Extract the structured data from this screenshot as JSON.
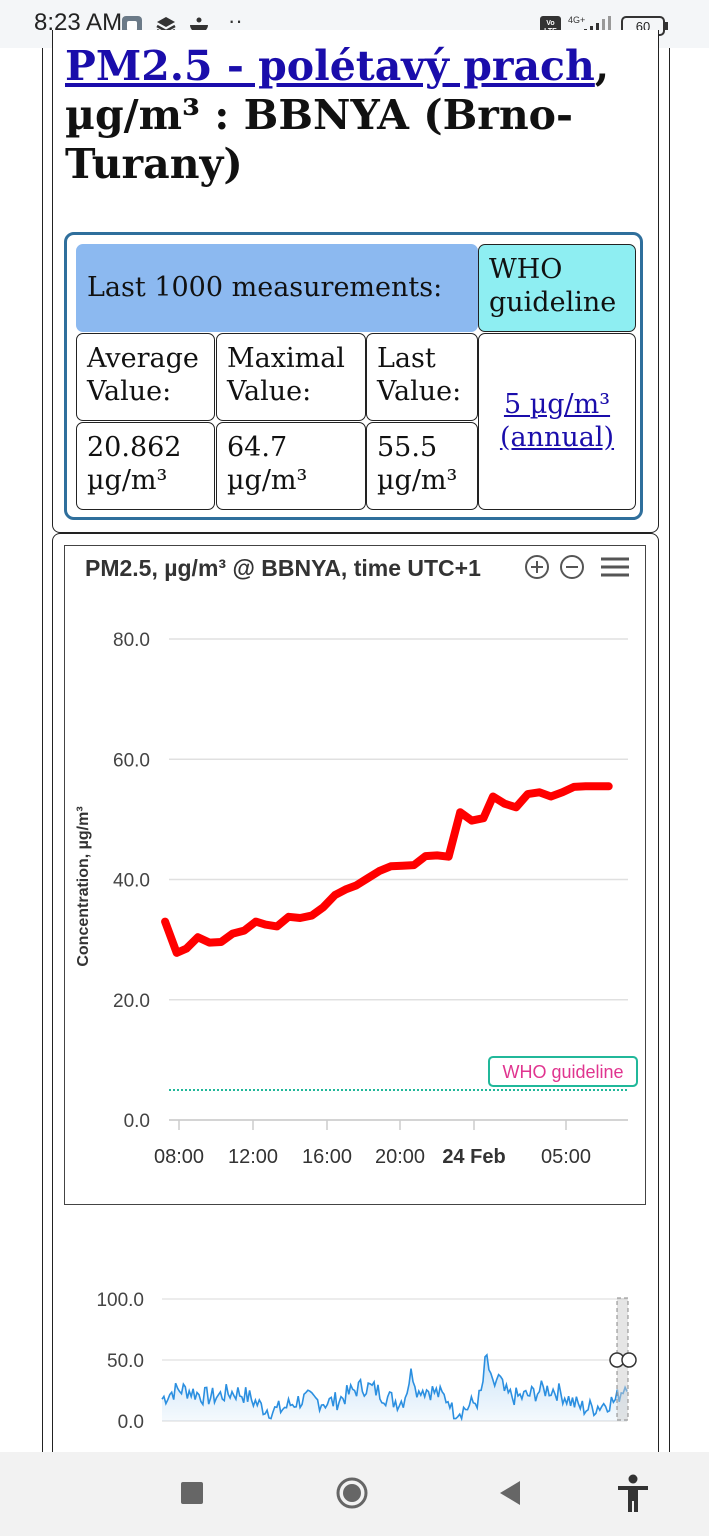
{
  "status_bar": {
    "time": "8:23 AM",
    "battery": "60",
    "network": "4G+"
  },
  "title": {
    "link_text": "PM2.5 - polétavý prach",
    "suffix": ", µg/m³ : BBNYA (Brno-Turany)"
  },
  "stats": {
    "header": "Last 1000 measurements:",
    "who_header": "WHO guideline",
    "columns": [
      {
        "label": "Average Value:",
        "value": "20.862 µg/m³"
      },
      {
        "label": "Maximal Value:",
        "value": "64.7 µg/m³"
      },
      {
        "label": "Last Value:",
        "value": "55.5 µg/m³"
      }
    ],
    "who_value": "5 µg/m³ (annual)"
  },
  "chart_data": [
    {
      "type": "line",
      "title": "PM2.5, µg/m³ @ BBNYA, time UTC+1",
      "xlabel": "",
      "ylabel": "Concentration, µg/m³",
      "ylim": [
        0,
        80
      ],
      "yticks": [
        "0.0",
        "20.0",
        "40.0",
        "60.0",
        "80.0"
      ],
      "xticks": [
        "08:00",
        "12:00",
        "16:00",
        "20:00",
        "24 Feb",
        "05:00"
      ],
      "xlim_hours": [
        7,
        30.8
      ],
      "x_hours": [
        6.8,
        7.4,
        7.9,
        8.5,
        9.1,
        9.7,
        10.3,
        10.9,
        11.5,
        12.0,
        12.6,
        13.2,
        13.8,
        14.4,
        15.0,
        15.6,
        16.2,
        16.7,
        17.3,
        17.9,
        18.5,
        19.1,
        19.7,
        20.3,
        20.9,
        21.5,
        22.1,
        22.7,
        23.3,
        23.8,
        24.4,
        25.0,
        25.6,
        26.2,
        26.8,
        27.4,
        28.0,
        28.6,
        29.2,
        29.8
      ],
      "values": [
        33.0,
        27.8,
        28.5,
        30.4,
        29.5,
        29.6,
        31.0,
        31.5,
        33.0,
        32.5,
        32.2,
        33.8,
        33.6,
        34.0,
        35.4,
        37.4,
        38.4,
        39.0,
        40.2,
        41.4,
        42.2,
        42.3,
        42.4,
        43.9,
        44.0,
        43.8,
        51.2,
        49.8,
        50.2,
        53.8,
        52.6,
        52.0,
        54.2,
        54.5,
        53.8,
        54.5,
        55.4,
        55.5,
        55.5,
        55.5
      ],
      "annotations": [
        {
          "label": "WHO guideline",
          "y": 5
        }
      ],
      "series_color": "#ff0000",
      "guideline_color": "#21b89a",
      "annotation_text_color": "#e0348f"
    },
    {
      "type": "area",
      "title": "",
      "ylim": [
        0,
        100
      ],
      "yticks": [
        "0.0",
        "50.0",
        "100.0"
      ],
      "n_points": 240,
      "series_color": "#2b8fe0"
    }
  ],
  "icons": [
    "zoom-in-icon",
    "zoom-out-icon",
    "menu-icon",
    "stop-icon",
    "home-icon",
    "back-icon",
    "accessibility-icon"
  ]
}
